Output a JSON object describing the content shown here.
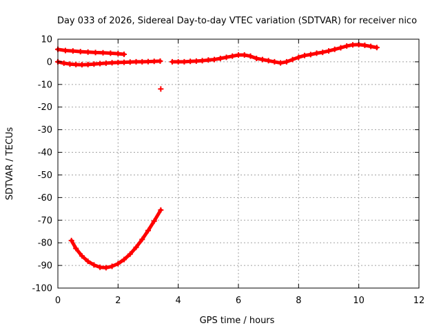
{
  "chart_data": {
    "type": "scatter",
    "title": "Day 033 of 2026, Sidereal Day-to-day VTEC variation (SDTVAR) for receiver nico",
    "xlabel": "GPS time / hours",
    "ylabel": "SDTVAR / TECUs",
    "xlim": [
      0,
      12
    ],
    "ylim": [
      -100,
      10
    ],
    "x_ticks": [
      0,
      2,
      4,
      6,
      8,
      10,
      12
    ],
    "y_ticks": [
      10,
      0,
      -10,
      -20,
      -30,
      -40,
      -50,
      -60,
      -70,
      -80,
      -90,
      -100
    ],
    "grid": true,
    "legend": "none",
    "marker": "plus",
    "color": "#ff0000",
    "series": [
      {
        "x": [
          0.0,
          0.25,
          0.5,
          0.75,
          1.0,
          1.25,
          1.5,
          1.75,
          2.0,
          2.2
        ],
        "y": [
          5.5,
          5.0,
          4.8,
          4.5,
          4.3,
          4.1,
          4.0,
          3.8,
          3.6,
          3.3
        ]
      },
      {
        "x": [
          0.0,
          0.2,
          0.4,
          0.6,
          0.8,
          1.0,
          1.2,
          1.4,
          1.6,
          1.8,
          2.0,
          2.2,
          2.4,
          2.6,
          2.8,
          3.0,
          3.2,
          3.4
        ],
        "y": [
          0.0,
          -0.6,
          -1.0,
          -1.2,
          -1.3,
          -1.2,
          -1.0,
          -0.8,
          -0.6,
          -0.4,
          -0.3,
          -0.2,
          -0.1,
          0.0,
          0.0,
          0.1,
          0.2,
          0.3
        ]
      },
      {
        "x": [
          3.42
        ],
        "y": [
          -12.0
        ]
      },
      {
        "x": [
          0.45,
          0.6,
          0.8,
          1.0,
          1.2,
          1.4,
          1.6,
          1.8,
          2.0,
          2.2,
          2.4,
          2.6,
          2.8,
          3.0,
          3.2,
          3.42
        ],
        "y": [
          -79.0,
          -82.5,
          -85.8,
          -88.2,
          -89.8,
          -90.8,
          -91.0,
          -90.4,
          -89.2,
          -87.4,
          -85.0,
          -82.0,
          -78.5,
          -74.6,
          -70.4,
          -65.5
        ]
      },
      {
        "x": [
          3.8,
          4.0,
          4.2,
          4.4,
          4.6,
          4.8,
          5.0,
          5.2,
          5.4,
          5.6,
          5.8,
          6.0,
          6.2,
          6.4,
          6.6,
          6.8,
          7.0,
          7.2,
          7.4,
          7.6,
          7.8,
          8.0,
          8.2,
          8.4,
          8.6,
          8.8,
          9.0,
          9.2,
          9.4,
          9.6,
          9.8,
          10.0,
          10.2,
          10.4,
          10.6
        ],
        "y": [
          0.0,
          0.0,
          0.0,
          0.2,
          0.3,
          0.5,
          0.8,
          1.0,
          1.5,
          2.0,
          2.5,
          3.0,
          3.0,
          2.5,
          1.5,
          1.0,
          0.5,
          0.0,
          -0.5,
          0.0,
          1.0,
          2.0,
          2.8,
          3.2,
          3.8,
          4.2,
          4.8,
          5.5,
          6.2,
          7.0,
          7.5,
          7.6,
          7.3,
          6.8,
          6.3
        ]
      }
    ]
  }
}
